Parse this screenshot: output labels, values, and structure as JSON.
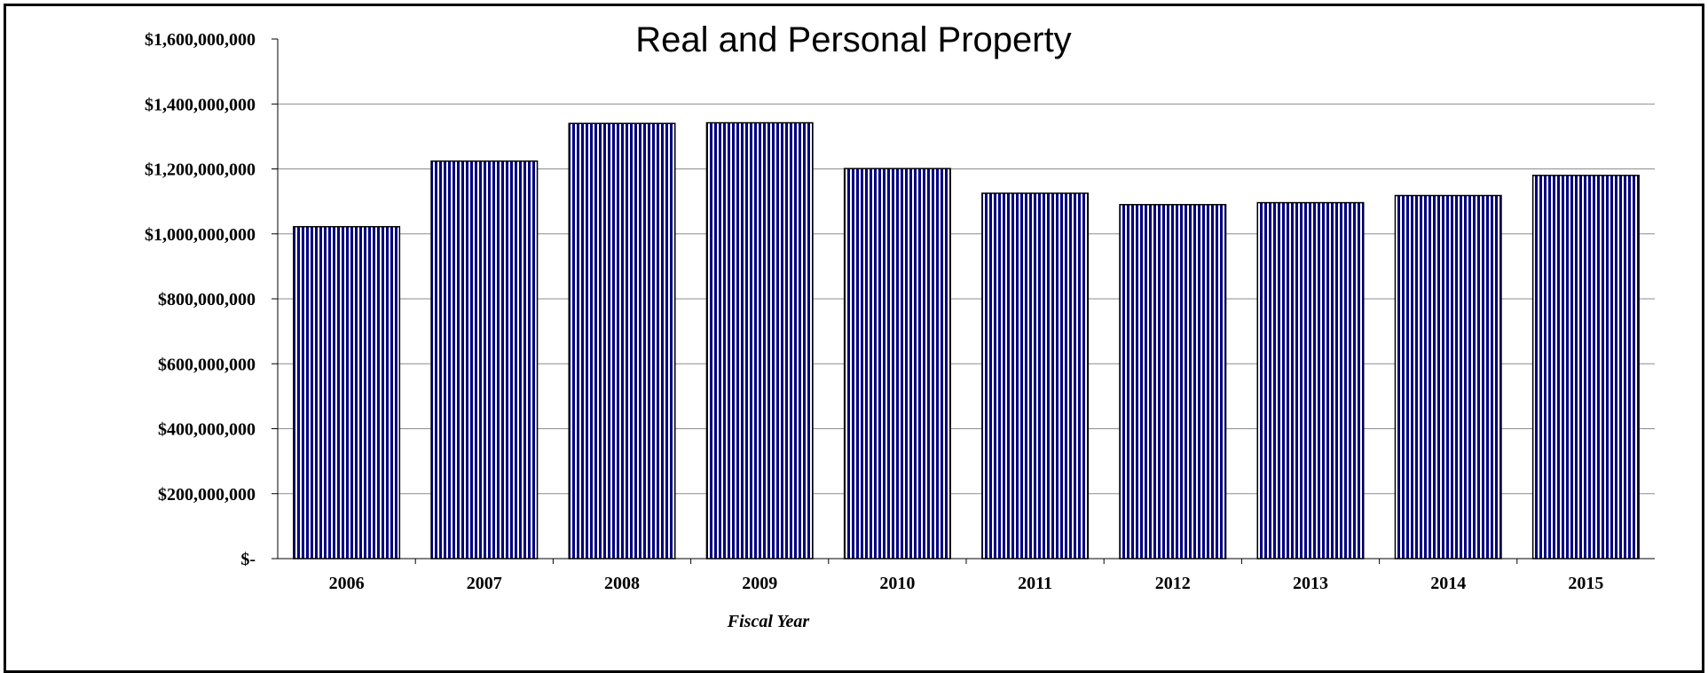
{
  "chart_data": {
    "type": "bar",
    "title": "Real and Personal Property",
    "xlabel": "Fiscal Year",
    "ylabel": "",
    "categories": [
      "2006",
      "2007",
      "2008",
      "2009",
      "2010",
      "2011",
      "2012",
      "2013",
      "2014",
      "2015"
    ],
    "values": [
      1022000000,
      1224000000,
      1340000000,
      1342000000,
      1201000000,
      1125000000,
      1090000000,
      1096000000,
      1118000000,
      1180000000
    ],
    "ylim": [
      0,
      1600000000
    ],
    "yticks": [
      0,
      200000000,
      400000000,
      600000000,
      800000000,
      1000000000,
      1200000000,
      1400000000,
      1600000000
    ],
    "ytick_labels": [
      "$-",
      "$200,000,000",
      "$400,000,000",
      "$600,000,000",
      "$800,000,000",
      "$1,000,000,000",
      "$1,200,000,000",
      "$1,400,000,000",
      "$1,600,000,000"
    ],
    "grid": true,
    "legend": "none",
    "bar_color": "#000080",
    "bar_pattern": "vertical-stripes"
  }
}
